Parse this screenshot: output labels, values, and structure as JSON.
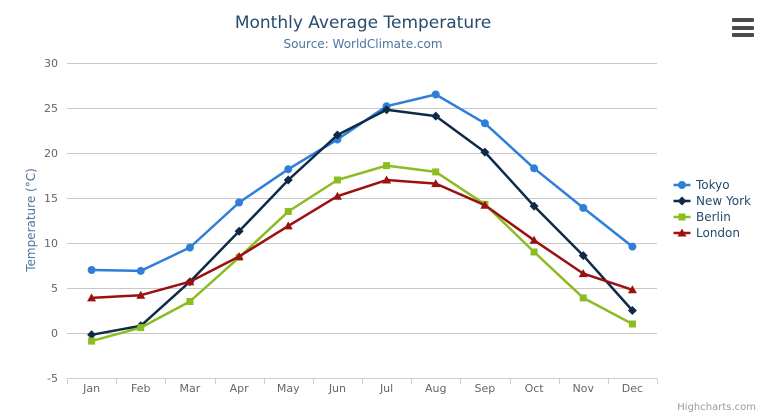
{
  "header": {
    "title": "Monthly Average Temperature",
    "subtitle": "Source: WorldClimate.com"
  },
  "credit": {
    "label": "Highcharts.com"
  },
  "context_menu": {
    "icon": "hamburger-menu-icon"
  },
  "colors": {
    "title": "#274b6d",
    "subtitle": "#4d759e",
    "axis_label": "#666666",
    "axis_line": "#c0d0e0",
    "gridline": "#c8c8c8",
    "legend_text": "#274b6d",
    "credit_text": "#999999"
  },
  "chart_data": {
    "type": "line",
    "title": "Monthly Average Temperature",
    "subtitle": "Source: WorldClimate.com",
    "xlabel": "",
    "ylabel": "Temperature (°C)",
    "ylim": [
      -5,
      30
    ],
    "yticks": [
      -5,
      0,
      5,
      10,
      15,
      20,
      25,
      30
    ],
    "grid": true,
    "legend_position": "right",
    "categories": [
      "Jan",
      "Feb",
      "Mar",
      "Apr",
      "May",
      "Jun",
      "Jul",
      "Aug",
      "Sep",
      "Oct",
      "Nov",
      "Dec"
    ],
    "series": [
      {
        "name": "Tokyo",
        "color": "#2f7ed8",
        "marker": "circle",
        "values": [
          7.0,
          6.9,
          9.5,
          14.5,
          18.2,
          21.5,
          25.2,
          26.5,
          23.3,
          18.3,
          13.9,
          9.6
        ]
      },
      {
        "name": "New York",
        "color": "#0f2a47",
        "marker": "diamond",
        "values": [
          -0.2,
          0.8,
          5.7,
          11.3,
          17.0,
          22.0,
          24.8,
          24.1,
          20.1,
          14.1,
          8.6,
          2.5
        ]
      },
      {
        "name": "Berlin",
        "color": "#8bbc21",
        "marker": "square",
        "values": [
          -0.9,
          0.6,
          3.5,
          8.4,
          13.5,
          17.0,
          18.6,
          17.9,
          14.3,
          9.0,
          3.9,
          1.0
        ]
      },
      {
        "name": "London",
        "color": "#9b1010",
        "marker": "triangle",
        "values": [
          3.9,
          4.2,
          5.7,
          8.5,
          11.9,
          15.2,
          17.0,
          16.6,
          14.2,
          10.3,
          6.6,
          4.8
        ]
      }
    ]
  }
}
